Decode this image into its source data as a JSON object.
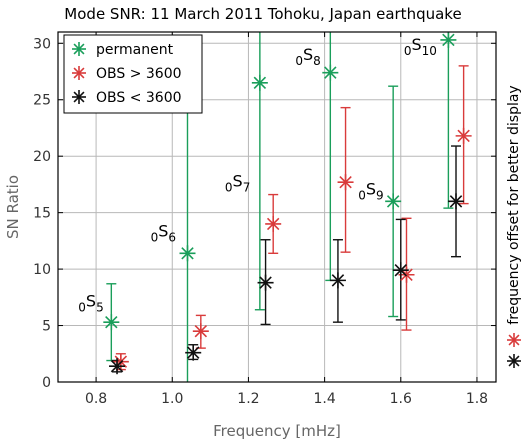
{
  "chart_data": {
    "type": "scatter",
    "title": "Mode SNR: 11 March 2011 Tohoku, Japan earthquake",
    "xlabel": "Frequency [mHz]",
    "ylabel": "SN Ratio",
    "xlim": [
      0.7,
      1.85
    ],
    "ylim": [
      0,
      31
    ],
    "xticks": [
      0.8,
      1.0,
      1.2,
      1.4,
      1.6,
      1.8
    ],
    "yticks": [
      0,
      5,
      10,
      15,
      20,
      25,
      30
    ],
    "grid": true,
    "legend_position": "top-left",
    "series": [
      {
        "name": "permanent",
        "color": "#1a9e5a",
        "points": [
          {
            "mode": "5",
            "x": 0.84,
            "y": 5.3,
            "low": 1.9,
            "high": 8.7
          },
          {
            "mode": "6",
            "x": 1.04,
            "y": 11.4,
            "low": 0,
            "high": 23.9
          },
          {
            "mode": "7",
            "x": 1.23,
            "y": 26.5,
            "low": 6.4,
            "high": 31
          },
          {
            "mode": "8",
            "x": 1.415,
            "y": 27.4,
            "low": 9.0,
            "high": 31
          },
          {
            "mode": "9",
            "x": 1.58,
            "y": 16.0,
            "low": 5.8,
            "high": 26.2
          },
          {
            "mode": "10",
            "x": 1.725,
            "y": 30.3,
            "low": 15.4,
            "high": 31
          }
        ]
      },
      {
        "name": "OBS > 3600",
        "color": "#d93b3b",
        "points": [
          {
            "mode": "5",
            "x": 0.865,
            "y": 1.8,
            "low": 1.1,
            "high": 2.5
          },
          {
            "mode": "6",
            "x": 1.075,
            "y": 4.5,
            "low": 3.0,
            "high": 5.9
          },
          {
            "mode": "7",
            "x": 1.265,
            "y": 14.0,
            "low": 11.4,
            "high": 16.6
          },
          {
            "mode": "8",
            "x": 1.455,
            "y": 17.7,
            "low": 11.5,
            "high": 24.3
          },
          {
            "mode": "9",
            "x": 1.615,
            "y": 9.5,
            "low": 4.6,
            "high": 14.5
          },
          {
            "mode": "10",
            "x": 1.765,
            "y": 21.8,
            "low": 15.8,
            "high": 28.0
          }
        ]
      },
      {
        "name": "OBS < 3600",
        "color": "#111111",
        "points": [
          {
            "mode": "5",
            "x": 0.855,
            "y": 1.4,
            "low": 0.9,
            "high": 1.9
          },
          {
            "mode": "6",
            "x": 1.055,
            "y": 2.6,
            "low": 2.0,
            "high": 3.3
          },
          {
            "mode": "7",
            "x": 1.245,
            "y": 8.8,
            "low": 5.1,
            "high": 12.6
          },
          {
            "mode": "8",
            "x": 1.435,
            "y": 9.0,
            "low": 5.3,
            "high": 12.6
          },
          {
            "mode": "9",
            "x": 1.6,
            "y": 9.9,
            "low": 5.5,
            "high": 14.4
          },
          {
            "mode": "10",
            "x": 1.745,
            "y": 16.0,
            "low": 11.1,
            "high": 20.9
          }
        ]
      }
    ],
    "mode_labels": [
      {
        "prefix": "0",
        "main": "S",
        "sub": "5",
        "x": 0.82,
        "y": 6.7
      },
      {
        "prefix": "0",
        "main": "S",
        "sub": "6",
        "x": 1.01,
        "y": 12.9
      },
      {
        "prefix": "0",
        "main": "S",
        "sub": "7",
        "x": 1.205,
        "y": 17.3
      },
      {
        "prefix": "0",
        "main": "S",
        "sub": "8",
        "x": 1.39,
        "y": 28.5
      },
      {
        "prefix": "0",
        "main": "S",
        "sub": "9",
        "x": 1.555,
        "y": 16.6
      },
      {
        "prefix": "0",
        "main": "S",
        "sub": "10",
        "x": 1.695,
        "y": 29.4
      }
    ],
    "side_annotation": "frequency offset for better display"
  }
}
